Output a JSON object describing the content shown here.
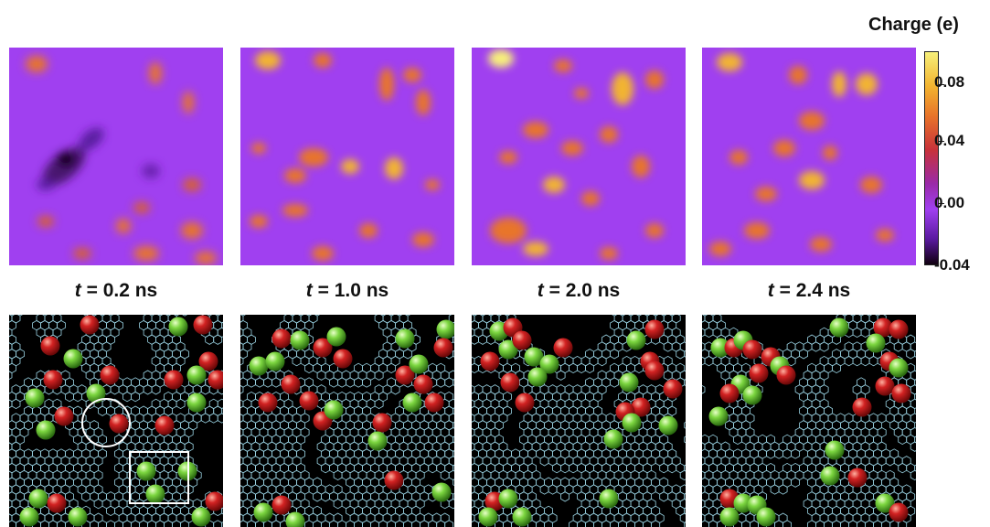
{
  "colorbar": {
    "title": "Charge (e)",
    "ticks": [
      "0.08",
      "0.04",
      "0.00",
      "-0.04"
    ],
    "range": [
      -0.04,
      0.1
    ],
    "colors": [
      "#f7f07a",
      "#f2b430",
      "#e8742a",
      "#c8323a",
      "#a040f0",
      "#5a1aa0",
      "#100010"
    ]
  },
  "panels": [
    {
      "time_label": "= 0.2 ns"
    },
    {
      "time_label": "= 1.0 ns"
    },
    {
      "time_label": "= 2.0 ns"
    },
    {
      "time_label": "= 2.4 ns"
    }
  ],
  "time_symbol": "t",
  "colors": {
    "background_map": "#a040f0",
    "ion_red": "#d22222",
    "ion_green": "#7cd640",
    "electrode_lattice": "#9bd4e4"
  }
}
